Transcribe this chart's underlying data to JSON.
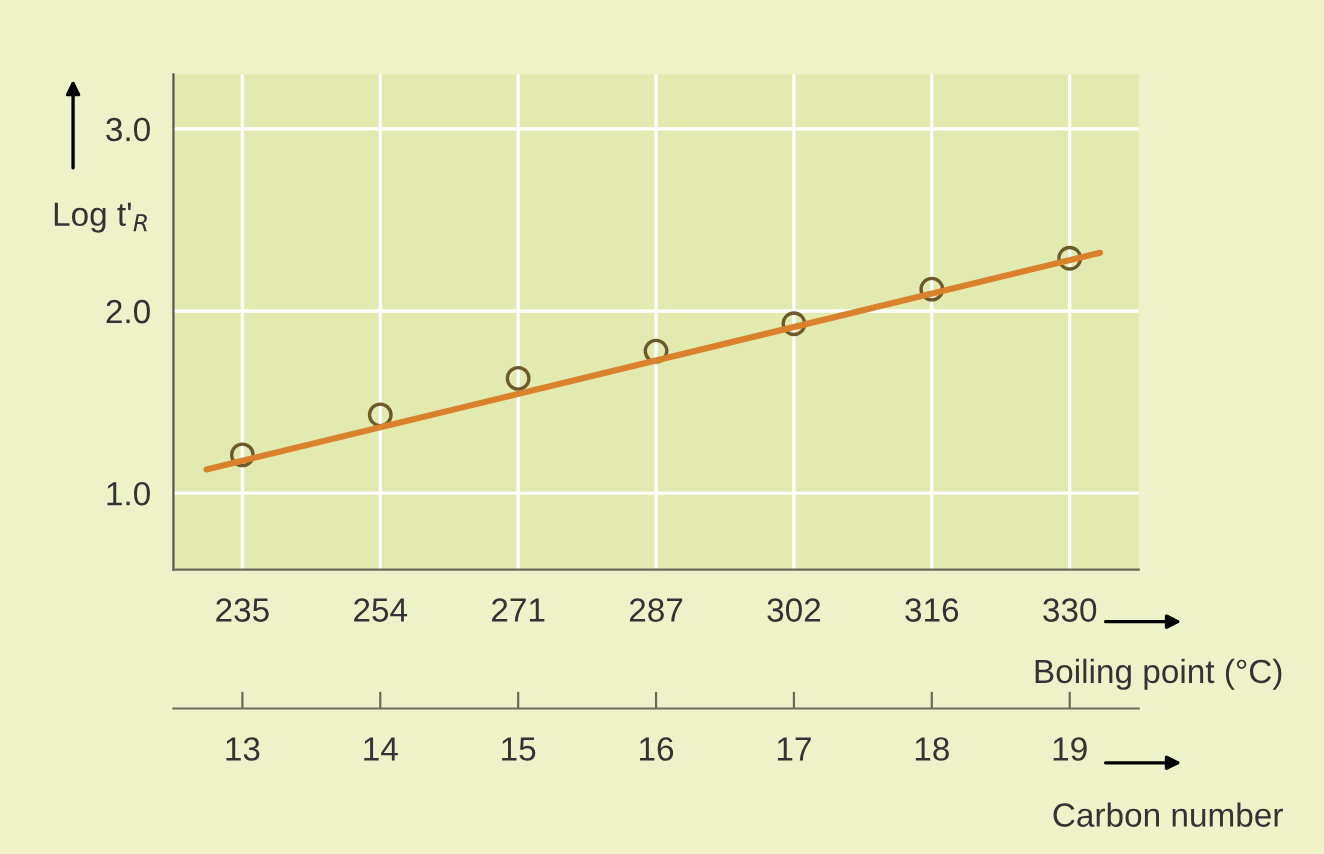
{
  "chart_data": {
    "type": "scatter",
    "categories": [
      "235",
      "254",
      "271",
      "287",
      "302",
      "316",
      "330"
    ],
    "series": [
      {
        "color": "#6b5a2a",
        "marker": "circle",
        "values": [
          1.21,
          1.43,
          1.63,
          1.78,
          1.93,
          2.12,
          2.29
        ]
      },
      {
        "type": "line",
        "axis": "x2",
        "color": "#d9822b",
        "line_style": "solid",
        "x": [
          12.74,
          19.22
        ],
        "values": [
          1.13,
          2.32
        ]
      }
    ],
    "xlabel": "Boiling point (°C)",
    "x2label": "Carbon number",
    "ylabel": "Log t'$_{R}$",
    "x2lim": [
      12.5,
      19.5
    ],
    "x2ticks": [
      13,
      14,
      15,
      16,
      17,
      18,
      19
    ],
    "ylim": [
      0.58,
      3.3
    ],
    "yticks": [
      {
        "value": 1,
        "label": "1.0"
      },
      {
        "value": 2,
        "label": "2.0"
      },
      {
        "value": 3,
        "label": "3.0"
      }
    ],
    "grid": true
  }
}
